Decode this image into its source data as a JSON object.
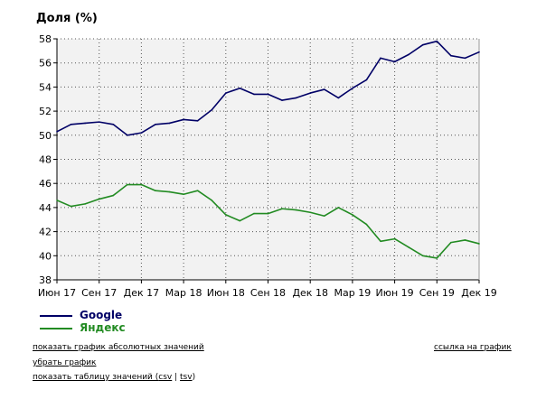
{
  "chart_data": {
    "type": "line",
    "title": "Доля (%)",
    "xlabel": "",
    "ylabel": "",
    "ylim": [
      38,
      58
    ],
    "yticks": [
      "38",
      "40",
      "42",
      "44",
      "46",
      "48",
      "50",
      "52",
      "54",
      "56",
      "58"
    ],
    "xticks": [
      "Июн 17",
      "Сен 17",
      "Дек 17",
      "Мар 18",
      "Июн 18",
      "Сен 18",
      "Дек 18",
      "Мар 19",
      "Июн 19",
      "Сен 19",
      "Дек 19"
    ],
    "grid": true,
    "legend_position": "bottom-left",
    "x": [
      0,
      1,
      2,
      3,
      4,
      5,
      6,
      7,
      8,
      9,
      10,
      11,
      12,
      13,
      14,
      15,
      16,
      17,
      18,
      19,
      20,
      21,
      22,
      23,
      24,
      25,
      26,
      27,
      28,
      29,
      30
    ],
    "series": [
      {
        "name": "Google",
        "color": "#000066",
        "values": [
          50.3,
          50.9,
          51.0,
          51.1,
          50.9,
          50.0,
          50.2,
          50.9,
          51.0,
          51.3,
          51.2,
          52.1,
          53.5,
          53.9,
          53.4,
          53.4,
          52.9,
          53.1,
          53.5,
          53.8,
          53.1,
          53.9,
          54.6,
          56.4,
          56.1,
          56.7,
          57.5,
          57.8,
          56.6,
          56.4,
          56.9
        ]
      },
      {
        "name": "Яндекс",
        "color": "#228b22",
        "values": [
          44.6,
          44.1,
          44.3,
          44.7,
          45.0,
          45.9,
          45.9,
          45.4,
          45.3,
          45.1,
          45.4,
          44.6,
          43.4,
          42.9,
          43.5,
          43.5,
          43.9,
          43.8,
          43.6,
          43.3,
          44.0,
          43.4,
          42.6,
          41.2,
          41.4,
          40.7,
          40.0,
          39.8,
          41.1,
          41.3,
          41.0
        ]
      }
    ]
  },
  "links": {
    "abs_values": "показать график абсолютных значений",
    "remove_chart": "убрать график",
    "table_prefix": "показать таблицу значений (",
    "csv": "csv",
    "sep": " | ",
    "tsv": "tsv",
    "table_suffix": ")",
    "chart_link": "ссылка на график"
  }
}
